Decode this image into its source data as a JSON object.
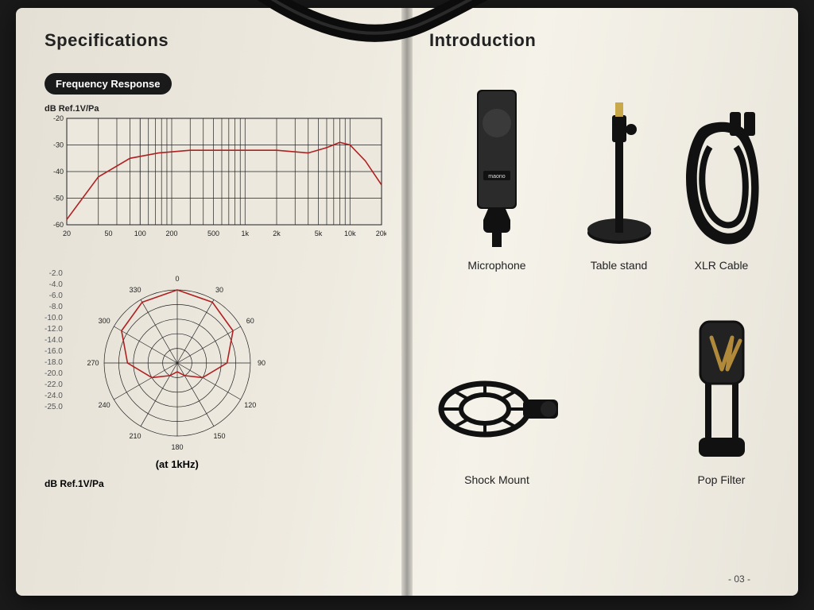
{
  "left": {
    "title": "Specifications",
    "badge": "Frequency Response",
    "freq_chart": {
      "type": "line",
      "axis_label": "dB Ref.1V/Pa",
      "ylim": [
        -60,
        -20
      ],
      "ytick_step": 10,
      "yticks": [
        -20,
        -30,
        -40,
        -50,
        -60
      ],
      "xticks_hz": [
        20,
        50,
        100,
        200,
        500,
        1000,
        2000,
        5000,
        10000,
        20000
      ],
      "xtick_labels": [
        "20",
        "50",
        "100",
        "200",
        "500",
        "1k",
        "2k",
        "5k",
        "10k",
        "20k"
      ],
      "series": [
        {
          "hz": 20,
          "db": -58
        },
        {
          "hz": 40,
          "db": -42
        },
        {
          "hz": 80,
          "db": -35
        },
        {
          "hz": 150,
          "db": -33
        },
        {
          "hz": 300,
          "db": -32
        },
        {
          "hz": 600,
          "db": -32
        },
        {
          "hz": 1000,
          "db": -32
        },
        {
          "hz": 2000,
          "db": -32
        },
        {
          "hz": 4000,
          "db": -33
        },
        {
          "hz": 6000,
          "db": -31
        },
        {
          "hz": 8000,
          "db": -29
        },
        {
          "hz": 10000,
          "db": -30
        },
        {
          "hz": 14000,
          "db": -36
        },
        {
          "hz": 20000,
          "db": -45
        }
      ],
      "line_color": "#b02020",
      "grid_color": "#222222",
      "background_color": "#ece8de",
      "line_width": 1.6,
      "grid_width": 0.7,
      "label_fontsize": 9
    },
    "polar": {
      "type": "polar",
      "caption": "(at 1kHz)",
      "db_ref": "dB Ref.1V/Pa",
      "angle_step": 30,
      "angles": [
        0,
        30,
        60,
        90,
        120,
        150,
        180,
        210,
        240,
        270,
        300,
        330
      ],
      "rings_db": [
        0,
        -5,
        -10,
        -15,
        -20,
        -25
      ],
      "legend_values": [
        "-2.0",
        "-4.0",
        "-6.0",
        "-8.0",
        "-10.0",
        "-12.0",
        "-14.0",
        "-16.0",
        "-18.0",
        "-20.0",
        "-22.0",
        "-24.0",
        "-25.0"
      ],
      "pattern_db": {
        "0": 0,
        "30": -1,
        "60": -3,
        "90": -8,
        "120": -15,
        "150": -20,
        "180": -22,
        "210": -20,
        "240": -15,
        "270": -8,
        "300": -3,
        "330": -1
      },
      "line_color": "#b02020",
      "grid_color": "#222222",
      "background_color": "#ece8de",
      "line_width": 1.6,
      "label_fontsize": 9
    }
  },
  "right": {
    "title": "Introduction",
    "items": [
      {
        "label": "Microphone",
        "icon": "microphone-icon"
      },
      {
        "label": "Table stand",
        "icon": "table-stand-icon"
      },
      {
        "label": "XLR Cable",
        "icon": "xlr-cable-icon"
      },
      {
        "label": "Shock Mount",
        "icon": "shock-mount-icon"
      },
      {
        "label": "",
        "icon": ""
      },
      {
        "label": "Pop Filter",
        "icon": "pop-filter-icon"
      }
    ],
    "page_number": "- 03 -"
  },
  "colors": {
    "page_bg": "#ece8de",
    "text": "#222222",
    "black": "#111111",
    "accent_gold": "#b08a3a"
  }
}
